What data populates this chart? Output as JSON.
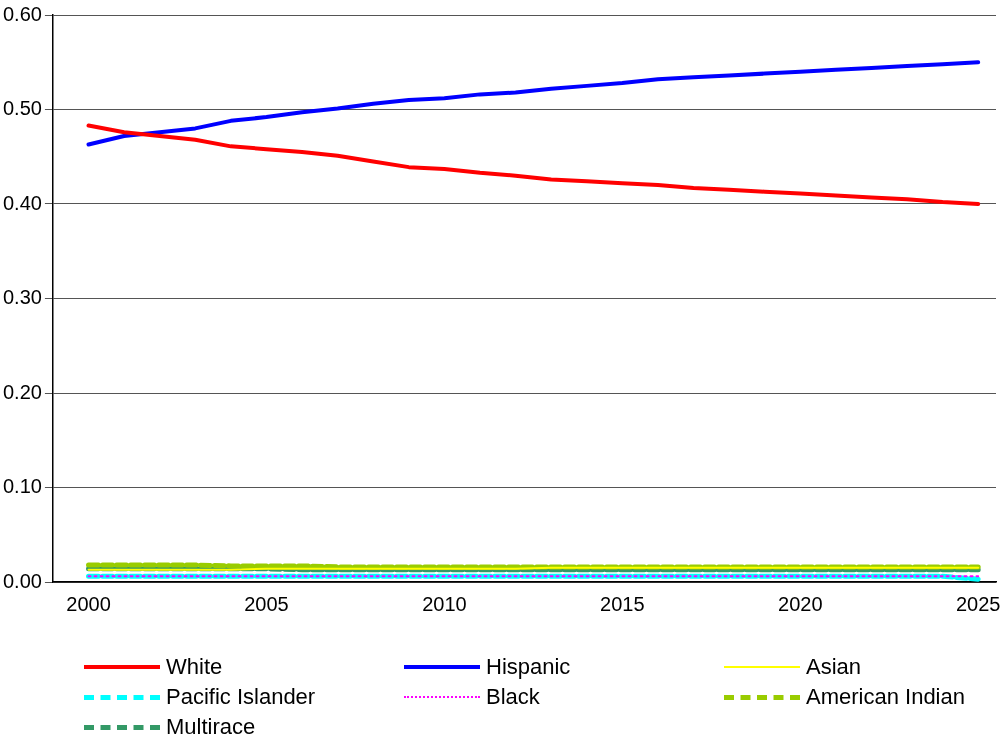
{
  "chart_data": {
    "type": "line",
    "x": [
      2000,
      2001,
      2002,
      2003,
      2004,
      2005,
      2006,
      2007,
      2008,
      2009,
      2010,
      2011,
      2012,
      2013,
      2014,
      2015,
      2016,
      2017,
      2018,
      2019,
      2020,
      2021,
      2022,
      2023,
      2024,
      2025
    ],
    "xlim": [
      1999,
      2025.5
    ],
    "xticks": [
      2000,
      2005,
      2010,
      2015,
      2020,
      2025
    ],
    "ylim": [
      0,
      0.6
    ],
    "yticks": [
      {
        "value": 0,
        "label": "0.00"
      },
      {
        "value": 0.1,
        "label": "0.10"
      },
      {
        "value": 0.2,
        "label": "0.20"
      },
      {
        "value": 0.3,
        "label": "0.30"
      },
      {
        "value": 0.4,
        "label": "0.40"
      },
      {
        "value": 0.5,
        "label": "0.50"
      },
      {
        "value": 0.6,
        "label": "0.60"
      }
    ],
    "grid": "y",
    "legend": "bottom",
    "marker": "none",
    "series": [
      {
        "name": "White",
        "color": "#ff0000",
        "line_style": "solid",
        "values": [
          0.483,
          0.476,
          0.472,
          0.468,
          0.461,
          0.458,
          0.455,
          0.451,
          0.445,
          0.439,
          0.437,
          0.433,
          0.43,
          0.426,
          0.424,
          0.422,
          0.42,
          0.417,
          0.415,
          0.413,
          0.411,
          0.409,
          0.407,
          0.405,
          0.402,
          0.4
        ]
      },
      {
        "name": "Hispanic",
        "color": "#0000ff",
        "line_style": "solid",
        "values": [
          0.463,
          0.472,
          0.476,
          0.48,
          0.488,
          0.492,
          0.497,
          0.501,
          0.506,
          0.51,
          0.512,
          0.516,
          0.518,
          0.522,
          0.525,
          0.528,
          0.532,
          0.534,
          0.536,
          0.538,
          0.54,
          0.542,
          0.544,
          0.546,
          0.548,
          0.55
        ]
      },
      {
        "name": "Asian",
        "color": "#ffff00",
        "line_style": "solid",
        "values": [
          0.013,
          0.013,
          0.013,
          0.013,
          0.013,
          0.014,
          0.014,
          0.014,
          0.014,
          0.014,
          0.014,
          0.014,
          0.014,
          0.015,
          0.015,
          0.015,
          0.015,
          0.015,
          0.015,
          0.015,
          0.015,
          0.015,
          0.015,
          0.015,
          0.015,
          0.015
        ]
      },
      {
        "name": "Pacific Islander",
        "color": "#00ffff",
        "line_style": "dashed",
        "values": [
          0.006,
          0.006,
          0.006,
          0.006,
          0.006,
          0.006,
          0.006,
          0.006,
          0.006,
          0.006,
          0.006,
          0.006,
          0.006,
          0.006,
          0.006,
          0.006,
          0.006,
          0.006,
          0.006,
          0.006,
          0.006,
          0.006,
          0.006,
          0.006,
          0.006,
          0.003
        ]
      },
      {
        "name": "Black",
        "color": "#ff00ff",
        "line_style": "dotted",
        "values": [
          0.006,
          0.006,
          0.006,
          0.006,
          0.006,
          0.006,
          0.006,
          0.006,
          0.006,
          0.006,
          0.006,
          0.006,
          0.006,
          0.006,
          0.006,
          0.006,
          0.006,
          0.006,
          0.006,
          0.006,
          0.006,
          0.006,
          0.006,
          0.006,
          0.006,
          0.006
        ]
      },
      {
        "name": "American Indian",
        "color": "#99cc00",
        "line_style": "dashed",
        "values": [
          0.018,
          0.018,
          0.018,
          0.018,
          0.017,
          0.017,
          0.017,
          0.016,
          0.016,
          0.016,
          0.016,
          0.016,
          0.016,
          0.016,
          0.016,
          0.016,
          0.016,
          0.016,
          0.016,
          0.016,
          0.016,
          0.016,
          0.016,
          0.016,
          0.016,
          0.016
        ]
      },
      {
        "name": "Multirace",
        "color": "#339966",
        "line_style": "dashed",
        "values": [
          0.014,
          0.014,
          0.014,
          0.014,
          0.014,
          0.014,
          0.013,
          0.013,
          0.013,
          0.013,
          0.013,
          0.013,
          0.013,
          0.013,
          0.013,
          0.013,
          0.013,
          0.013,
          0.013,
          0.013,
          0.013,
          0.013,
          0.013,
          0.013,
          0.013,
          0.013
        ]
      }
    ]
  }
}
